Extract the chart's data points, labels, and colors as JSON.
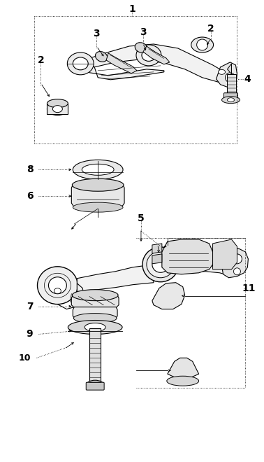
{
  "bg_color": "#ffffff",
  "line_color": "#000000",
  "fig_width": 3.78,
  "fig_height": 6.6,
  "dpi": 100
}
